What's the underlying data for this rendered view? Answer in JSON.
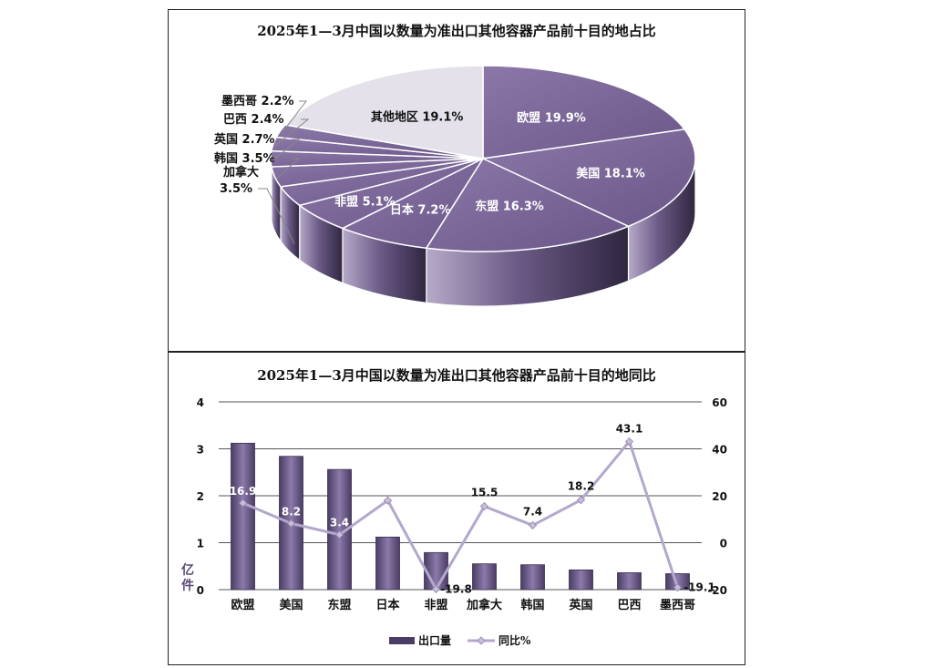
{
  "chart_data": [
    {
      "type": "pie",
      "title": "2025年1—3月中国以数量为准出口其他容器产品前十目的地占比",
      "slices": [
        {
          "label": "欧盟",
          "value": 19.9,
          "display": "欧盟 19.9%"
        },
        {
          "label": "美国",
          "value": 18.1,
          "display": "美国 18.1%"
        },
        {
          "label": "东盟",
          "value": 16.3,
          "display": "东盟 16.3%"
        },
        {
          "label": "日本",
          "value": 7.2,
          "display": "日本 7.2%"
        },
        {
          "label": "非盟",
          "value": 5.1,
          "display": "非盟 5.1%"
        },
        {
          "label": "加拿大",
          "value": 3.5,
          "display": "加拿大\n3.5%"
        },
        {
          "label": "韩国",
          "value": 3.5,
          "display": "韩国 3.5%"
        },
        {
          "label": "英国",
          "value": 2.7,
          "display": "英国 2.7%"
        },
        {
          "label": "巴西",
          "value": 2.4,
          "display": "巴西 2.4%"
        },
        {
          "label": "墨西哥",
          "value": 2.2,
          "display": "墨西哥 2.2%"
        },
        {
          "label": "其他地区",
          "value": 19.1,
          "display": "其他地区 19.1%"
        }
      ],
      "colors": {
        "main": "#7a6699",
        "dark": "#3f3454",
        "other": "#e4e1ea"
      }
    },
    {
      "type": "bar",
      "title": "2025年1—3月中国以数量为准出口其他容器产品前十目的地同比",
      "categories": [
        "欧盟",
        "美国",
        "东盟",
        "日本",
        "非盟",
        "加拿大",
        "韩国",
        "英国",
        "巴西",
        "墨西哥"
      ],
      "series": [
        {
          "name": "出口量",
          "type": "bar",
          "axis": "left",
          "values": [
            3.12,
            2.84,
            2.56,
            1.12,
            0.79,
            0.55,
            0.53,
            0.42,
            0.36,
            0.34
          ]
        },
        {
          "name": "同比%",
          "type": "line",
          "axis": "right",
          "values": [
            16.9,
            8.2,
            3.4,
            18.0,
            -19.8,
            15.5,
            7.4,
            18.2,
            43.1,
            -19.1
          ],
          "labels": [
            "16.9",
            "8.2",
            "3.4",
            "",
            "-19.8",
            "15.5",
            "7.4",
            "18.2",
            "43.1",
            "-19.1"
          ]
        }
      ],
      "ylabel": "亿件",
      "ylim": [
        0,
        4
      ],
      "yticks": [
        "0",
        "1",
        "2",
        "3",
        "4"
      ],
      "y2lim": [
        -20,
        60
      ],
      "y2ticks": [
        "-20",
        "0",
        "20",
        "40",
        "60"
      ],
      "grid": true,
      "legend_position": "bottom",
      "colors": {
        "bar": "#4a3d63",
        "bar_light": "#8c7aab",
        "line": "#b3a7cc",
        "grid": "#555555"
      }
    }
  ]
}
